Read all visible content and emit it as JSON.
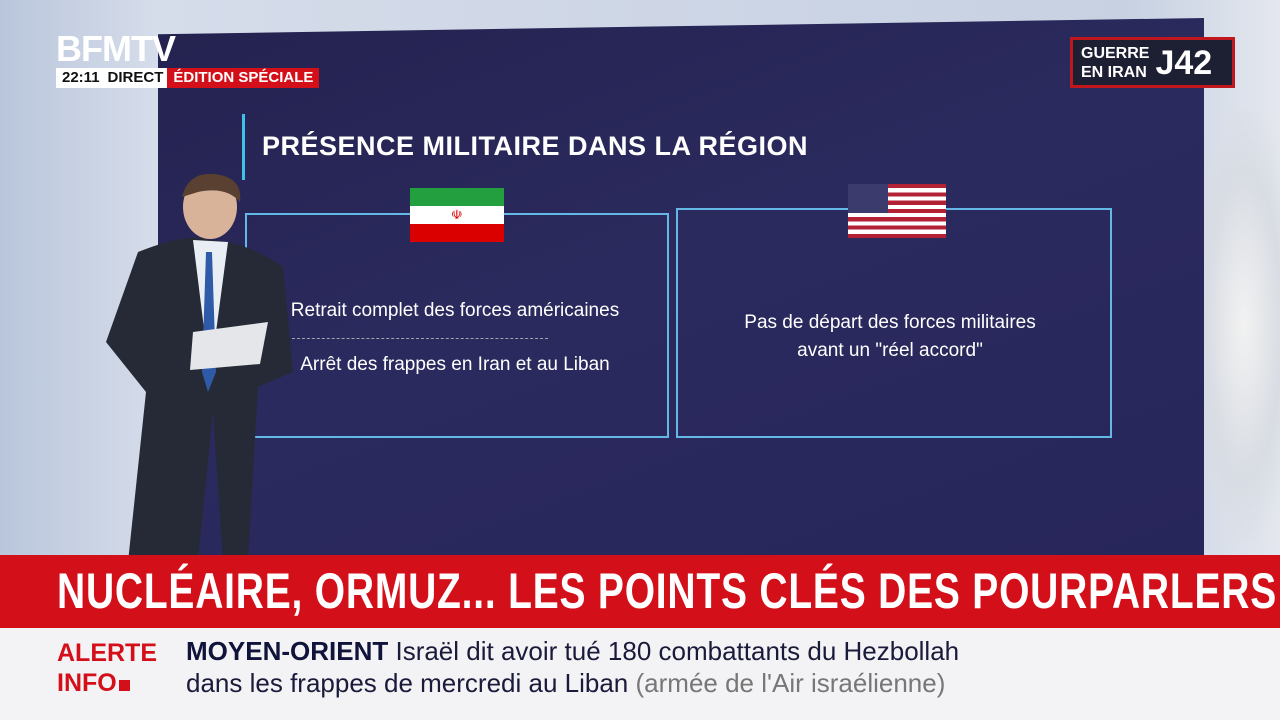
{
  "channel": {
    "logo": "BFMTV",
    "time": "22:11",
    "live": "DIRECT",
    "edition": "ÉDITION SPÉCIALE"
  },
  "badge": {
    "line1": "GUERRE",
    "line2": "EN IRAN",
    "day": "J42"
  },
  "screen": {
    "title": "PRÉSENCE MILITAIRE DANS LA RÉGION",
    "iran": {
      "flag": "iran-flag",
      "point1": "Retrait complet des forces américaines",
      "point2": "Arrêt des frappes en Iran et au Liban"
    },
    "usa": {
      "flag": "us-flag",
      "line1": "Pas de départ des forces militaires",
      "line2": "avant un \"réel accord\""
    }
  },
  "headline": "NUCLÉAIRE, ORMUZ... LES POINTS CLÉS DES POURPARLERS",
  "ticker": {
    "label1": "ALERTE",
    "label2": "INFO",
    "category": "MOYEN-ORIENT",
    "text1": "Israël dit avoir tué 180 combattants du Hezbollah",
    "text2": "dans les frappes de mercredi au Liban",
    "source": "(armée de l'Air israélienne)"
  },
  "colors": {
    "red": "#d3101a",
    "navy": "#27265a",
    "accent": "#3fc2e8"
  }
}
